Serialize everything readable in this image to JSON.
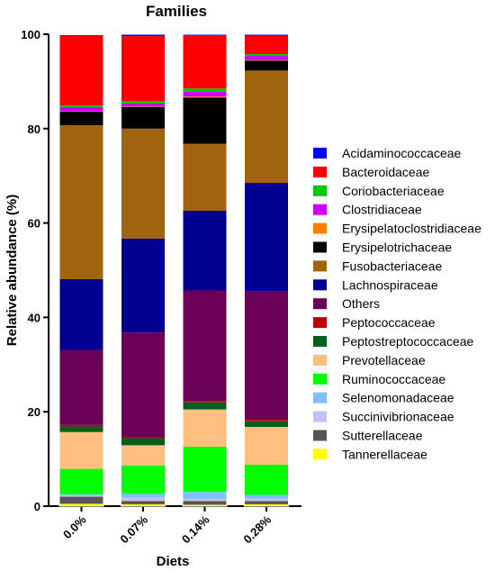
{
  "chart_data": {
    "type": "bar",
    "stacked": true,
    "title": "Families",
    "xlabel": "Diets",
    "ylabel": "Relative abundance (%)",
    "ylim": [
      0,
      100
    ],
    "yticks": [
      "0",
      "20",
      "40",
      "60",
      "80",
      "100"
    ],
    "categories": [
      "0.0%",
      "0.07%",
      "0.14%",
      "0.28%"
    ],
    "legend_position": "right",
    "series": [
      {
        "name": "Tannerellaceae",
        "color": "#ffff00",
        "values": [
          0.5,
          0.4,
          0.3,
          0.4
        ]
      },
      {
        "name": "Sutterellaceae",
        "color": "#555555",
        "values": [
          1.5,
          0.7,
          0.8,
          0.7
        ]
      },
      {
        "name": "Succinivibrionaceae",
        "color": "#c4c0f4",
        "values": [
          0.3,
          0.8,
          0.4,
          0.5
        ]
      },
      {
        "name": "Selenomonadaceae",
        "color": "#7fbfff",
        "values": [
          0.2,
          0.7,
          1.5,
          0.8
        ]
      },
      {
        "name": "Ruminococcaceae",
        "color": "#00ff00",
        "values": [
          5.4,
          6.0,
          9.6,
          6.4
        ]
      },
      {
        "name": "Prevotellaceae",
        "color": "#ffbf80",
        "values": [
          7.8,
          4.3,
          7.9,
          8.0
        ]
      },
      {
        "name": "Peptostreptococcaceae",
        "color": "#005f1f",
        "values": [
          1.2,
          1.5,
          1.5,
          1.2
        ]
      },
      {
        "name": "Peptococcaceae",
        "color": "#c00000",
        "values": [
          0.3,
          0.3,
          0.3,
          0.3
        ]
      },
      {
        "name": "Others",
        "color": "#6a0057",
        "values": [
          15.9,
          22.1,
          23.4,
          27.3
        ]
      },
      {
        "name": "Lachnospiraceae",
        "color": "#000090",
        "values": [
          15.0,
          19.9,
          16.9,
          22.9
        ]
      },
      {
        "name": "Fusobacteriaceae",
        "color": "#a0640f",
        "values": [
          32.6,
          23.3,
          14.2,
          23.8
        ]
      },
      {
        "name": "Erysipelotrichaceae",
        "color": "#000000",
        "values": [
          2.9,
          4.6,
          9.8,
          2.1
        ]
      },
      {
        "name": "Erysipelatoclostridiaceae",
        "color": "#ff8000",
        "values": [
          0.1,
          0.1,
          0.2,
          0.1
        ]
      },
      {
        "name": "Clostridiaceae",
        "color": "#cc00ff",
        "values": [
          0.9,
          0.6,
          1.0,
          0.9
        ]
      },
      {
        "name": "Coriobacteriaceae",
        "color": "#00c800",
        "values": [
          0.3,
          0.5,
          0.7,
          0.4
        ]
      },
      {
        "name": "Bacteroidaceae",
        "color": "#ff0000",
        "values": [
          14.8,
          13.8,
          11.3,
          3.9
        ]
      },
      {
        "name": "Acidaminococcaceae",
        "color": "#0000ff",
        "values": [
          0.2,
          0.4,
          0.2,
          0.3
        ]
      }
    ],
    "legend_order": [
      "Acidaminococcaceae",
      "Bacteroidaceae",
      "Coriobacteriaceae",
      "Clostridiaceae",
      "Erysipelatoclostridiaceae",
      "Erysipelotrichaceae",
      "Fusobacteriaceae",
      "Lachnospiraceae",
      "Others",
      "Peptococcaceae",
      "Peptostreptococcaceae",
      "Prevotellaceae",
      "Ruminococcaceae",
      "Selenomonadaceae",
      "Succinivibrionaceae",
      "Sutterellaceae",
      "Tannerellaceae"
    ]
  }
}
